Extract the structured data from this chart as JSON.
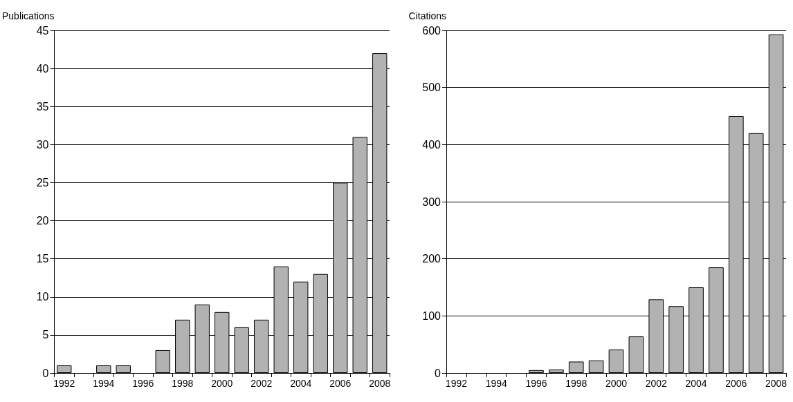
{
  "chart_data": [
    {
      "type": "bar",
      "ylabel": "Publications",
      "categories": [
        "1992",
        null,
        "1994",
        null,
        "1996",
        null,
        "1998",
        null,
        "2000",
        null,
        "2002",
        null,
        "2004",
        null,
        "2006",
        null,
        "2008"
      ],
      "values": [
        1,
        0,
        1,
        1,
        0,
        3,
        7,
        9,
        8,
        6,
        7,
        14,
        12,
        13,
        25,
        31,
        42
      ],
      "color": "#b2b2b2",
      "ylim": [
        0,
        45
      ],
      "yticks": [
        0,
        5,
        10,
        15,
        20,
        25,
        30,
        35,
        40,
        45
      ],
      "grid": "y"
    },
    {
      "type": "bar",
      "ylabel": "Citations",
      "categories": [
        "1992",
        null,
        "1994",
        null,
        "1996",
        null,
        "1998",
        null,
        "2000",
        null,
        "2002",
        null,
        "2004",
        null,
        "2006",
        null,
        "2008"
      ],
      "values": [
        0,
        0,
        0,
        0,
        5,
        6,
        20,
        22,
        41,
        64,
        129,
        117,
        150,
        185,
        450,
        420,
        593
      ],
      "color": "#b2b2b2",
      "ylim": [
        0,
        600
      ],
      "yticks": [
        0,
        100,
        200,
        300,
        400,
        500,
        600
      ],
      "grid": "y"
    }
  ]
}
